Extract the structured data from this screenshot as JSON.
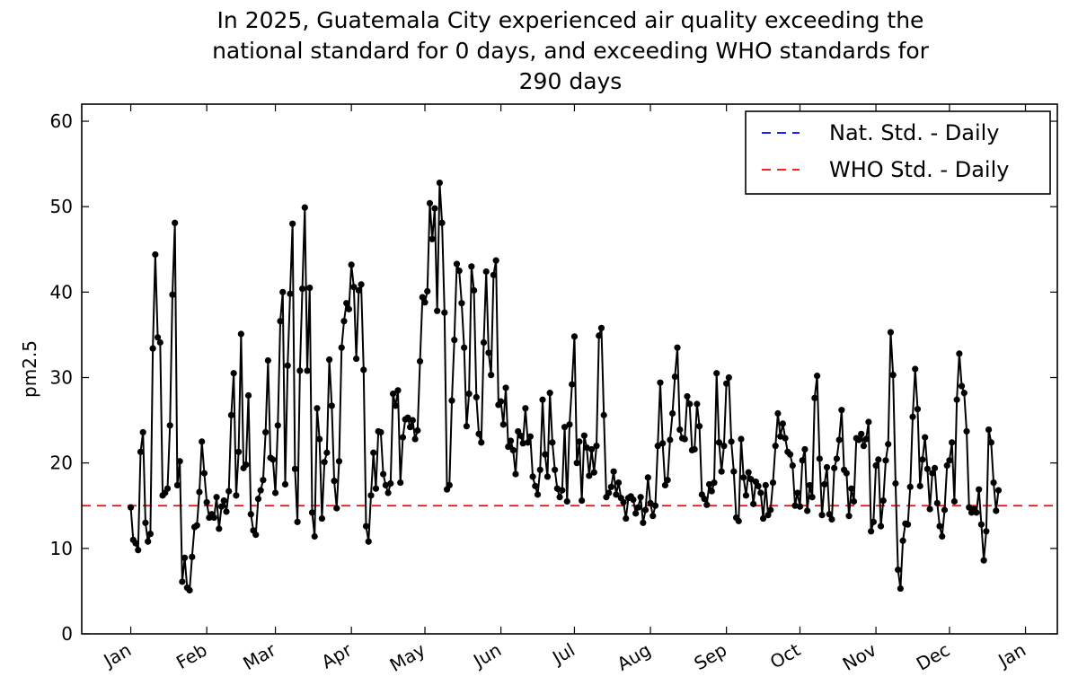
{
  "chart_data": {
    "type": "line",
    "title": "In 2025, Guatemala City experienced air quality exceeding the national standard for 0 days, and exceeding WHO standards for 290 days",
    "title_lines": [
      "In 2025, Guatemala City experienced air quality exceeding the",
      "national standard for 0 days, and exceeding WHO standards for",
      "290 days"
    ],
    "xlabel": "",
    "ylabel": "pm2.5",
    "ylim": [
      0,
      62
    ],
    "yticks": [
      0,
      10,
      20,
      30,
      40,
      50,
      60
    ],
    "xlim_days": [
      -20,
      378
    ],
    "xticks": [
      {
        "label": "Jan",
        "day": 0
      },
      {
        "label": "Feb",
        "day": 31
      },
      {
        "label": "Mar",
        "day": 59
      },
      {
        "label": "Apr",
        "day": 90
      },
      {
        "label": "May",
        "day": 120
      },
      {
        "label": "Jun",
        "day": 151
      },
      {
        "label": "Jul",
        "day": 181
      },
      {
        "label": "Aug",
        "day": 212
      },
      {
        "label": "Sep",
        "day": 243
      },
      {
        "label": "Oct",
        "day": 273
      },
      {
        "label": "Nov",
        "day": 304
      },
      {
        "label": "Dec",
        "day": 334
      },
      {
        "label": "Jan",
        "day": 365
      }
    ],
    "legend": {
      "placement": "top-right",
      "entries": [
        {
          "label": "Nat. Std. - Daily",
          "color": "#0000ff",
          "style": "dashed"
        },
        {
          "label": "WHO Std. - Daily",
          "color": "#ff0000",
          "style": "dashed"
        }
      ]
    },
    "reference_lines": [
      {
        "name": "WHO Std. - Daily",
        "value": 15,
        "color": "#ff0000"
      }
    ],
    "series": [
      {
        "name": "pm2.5",
        "color": "#000000",
        "values": [
          14.8,
          11.0,
          10.6,
          9.8,
          21.3,
          23.6,
          13.0,
          10.8,
          11.7,
          33.4,
          44.4,
          34.7,
          34.1,
          16.2,
          16.5,
          17.0,
          24.4,
          39.7,
          48.1,
          17.4,
          20.2,
          6.1,
          8.9,
          5.4,
          5.1,
          9.0,
          12.5,
          12.7,
          16.6,
          22.5,
          18.8,
          15.4,
          13.6,
          14.0,
          13.6,
          16.0,
          12.3,
          14.9,
          15.6,
          14.3,
          16.7,
          25.6,
          30.5,
          16.2,
          21.3,
          35.1,
          19.4,
          19.8,
          27.9,
          14.0,
          12.1,
          11.6,
          15.8,
          16.8,
          18.0,
          23.6,
          32.0,
          20.6,
          20.4,
          16.5,
          24.4,
          36.6,
          40.0,
          17.5,
          31.4,
          39.8,
          48.0,
          19.3,
          13.1,
          30.8,
          40.4,
          49.9,
          30.8,
          40.5,
          14.2,
          11.4,
          26.4,
          22.8,
          13.5,
          20.1,
          21.2,
          32.1,
          26.7,
          17.9,
          14.7,
          20.2,
          33.5,
          36.6,
          38.7,
          38.0,
          43.2,
          40.6,
          32.2,
          40.2,
          40.9,
          30.9,
          12.6,
          10.8,
          16.2,
          21.2,
          17.0,
          23.7,
          23.6,
          18.7,
          17.4,
          16.5,
          17.6,
          28.1,
          26.7,
          28.5,
          17.7,
          23.0,
          25.1,
          25.3,
          24.2,
          25.0,
          22.8,
          23.8,
          31.9,
          39.4,
          38.8,
          40.1,
          50.4,
          46.2,
          49.8,
          37.8,
          52.8,
          48.1,
          37.6,
          16.9,
          17.4,
          27.3,
          34.4,
          43.3,
          42.5,
          38.7,
          33.5,
          24.3,
          28.1,
          43.0,
          40.2,
          27.7,
          23.4,
          22.4,
          34.1,
          42.4,
          32.9,
          30.3,
          42.0,
          43.7,
          26.8,
          27.2,
          24.5,
          28.8,
          21.9,
          22.6,
          21.5,
          18.7,
          23.7,
          23.2,
          22.3,
          26.4,
          22.4,
          23.1,
          18.4,
          17.3,
          16.3,
          19.2,
          27.4,
          21.0,
          18.4,
          28.2,
          22.4,
          19.2,
          17.0,
          16.0,
          16.8,
          24.2,
          15.5,
          24.5,
          29.2,
          34.8,
          20.0,
          22.5,
          15.6,
          23.2,
          21.8,
          18.5,
          21.6,
          18.9,
          22.0,
          34.9,
          35.8,
          25.6,
          16.0,
          16.5,
          17.2,
          19.0,
          16.3,
          17.7,
          15.9,
          15.4,
          13.5,
          15.9,
          16.1,
          15.7,
          14.1,
          14.8,
          16.0,
          13.0,
          14.5,
          18.3,
          15.3,
          13.8,
          15.0,
          22.0,
          29.4,
          22.3,
          17.4,
          18.0,
          22.7,
          25.8,
          30.1,
          33.5,
          23.9,
          22.9,
          22.8,
          27.8,
          26.9,
          21.5,
          21.6,
          26.9,
          24.3,
          16.3,
          15.8,
          15.1,
          17.5,
          16.7,
          17.7,
          30.5,
          22.4,
          19.0,
          22.0,
          29.3,
          30.0,
          22.5,
          19.0,
          13.6,
          13.2,
          22.8,
          18.3,
          16.2,
          18.9,
          18.1,
          15.2,
          17.8,
          17.3,
          16.5,
          13.5,
          17.4,
          13.9,
          14.5,
          17.7,
          22.0,
          25.8,
          23.1,
          24.6,
          22.9,
          21.3,
          21.0,
          19.7,
          15.0,
          16.5,
          14.9,
          20.3,
          21.6,
          14.4,
          17.4,
          16.0,
          27.6,
          30.2,
          20.5,
          13.9,
          17.5,
          19.5,
          14.0,
          13.4,
          19.4,
          20.5,
          22.7,
          26.2,
          19.2,
          18.8,
          13.8,
          17.0,
          15.5,
          22.9,
          22.7,
          23.4,
          22.0,
          22.8,
          24.8,
          12.0,
          13.1,
          19.7,
          20.4,
          12.6,
          15.6,
          20.3,
          22.2,
          35.3,
          30.3,
          17.6,
          7.5,
          5.3,
          10.9,
          12.9,
          12.8,
          17.2,
          25.4,
          31.0,
          26.3,
          17.3,
          20.4,
          23.0,
          19.3,
          14.6,
          18.8,
          19.4,
          15.3,
          12.6,
          11.4,
          14.5,
          19.7,
          20.3,
          22.4,
          15.5,
          27.4,
          32.8,
          29.0,
          28.2,
          23.7,
          14.8,
          14.2,
          14.6,
          14.2,
          16.9,
          12.8,
          8.6,
          12.0,
          23.9,
          22.4,
          17.7,
          14.4,
          16.8
        ]
      }
    ]
  }
}
